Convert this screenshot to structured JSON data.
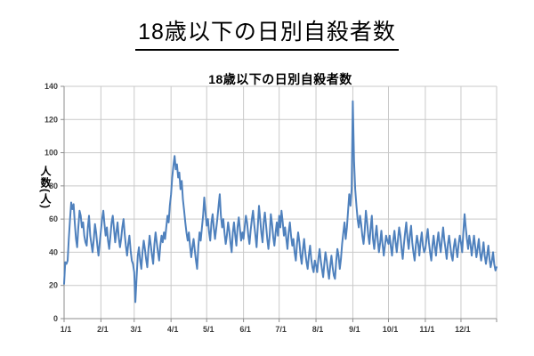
{
  "page": {
    "main_title": "18歳以下の日別自殺者数"
  },
  "chart_data": {
    "type": "line",
    "title": "18歳以下の日別自殺者数",
    "xlabel": "",
    "ylabel": "人数(人)",
    "ylim": [
      0,
      140
    ],
    "ytick_step": 20,
    "y_ticks": [
      0,
      20,
      40,
      60,
      80,
      100,
      120,
      140
    ],
    "grid": true,
    "legend": "none",
    "line_color": "#4F81BD",
    "grid_color": "#c9c9c9",
    "axis_color": "#8e8e8e",
    "days_total": 365,
    "x_ticks": [
      {
        "label": "1/1",
        "day": 0
      },
      {
        "label": "2/1",
        "day": 31
      },
      {
        "label": "3/1",
        "day": 59
      },
      {
        "label": "4/1",
        "day": 90
      },
      {
        "label": "5/1",
        "day": 120
      },
      {
        "label": "6/1",
        "day": 151
      },
      {
        "label": "7/1",
        "day": 181
      },
      {
        "label": "8/1",
        "day": 212
      },
      {
        "label": "9/1",
        "day": 243
      },
      {
        "label": "10/1",
        "day": 273
      },
      {
        "label": "11/1",
        "day": 304
      },
      {
        "label": "12/1",
        "day": 334
      }
    ],
    "values": [
      21,
      34,
      33,
      35,
      48,
      60,
      70,
      66,
      69,
      58,
      48,
      43,
      55,
      65,
      62,
      55,
      58,
      50,
      46,
      44,
      55,
      62,
      50,
      45,
      40,
      48,
      57,
      52,
      44,
      38,
      46,
      53,
      60,
      65,
      57,
      50,
      55,
      47,
      42,
      50,
      58,
      62,
      54,
      46,
      52,
      58,
      49,
      43,
      48,
      55,
      60,
      51,
      44,
      38,
      45,
      50,
      41,
      35,
      33,
      28,
      10,
      24,
      38,
      43,
      35,
      30,
      40,
      47,
      42,
      36,
      31,
      42,
      50,
      44,
      38,
      33,
      45,
      52,
      46,
      40,
      35,
      44,
      50,
      46,
      52,
      48,
      55,
      62,
      58,
      68,
      75,
      85,
      92,
      98,
      90,
      93,
      85,
      88,
      78,
      83,
      72,
      65,
      58,
      52,
      47,
      52,
      44,
      37,
      43,
      48,
      41,
      35,
      30,
      44,
      52,
      47,
      55,
      62,
      73,
      64,
      56,
      60,
      52,
      47,
      58,
      63,
      55,
      48,
      54,
      60,
      68,
      75,
      62,
      55,
      60,
      52,
      45,
      50,
      58,
      53,
      46,
      40,
      52,
      58,
      50,
      44,
      55,
      61,
      54,
      47,
      52,
      48,
      55,
      62,
      58,
      50,
      45,
      53,
      60,
      65,
      57,
      50,
      43,
      55,
      68,
      60,
      52,
      46,
      58,
      64,
      56,
      48,
      42,
      50,
      63,
      57,
      49,
      44,
      52,
      58,
      50,
      62,
      55,
      65,
      58,
      50,
      55,
      48,
      42,
      52,
      58,
      50,
      44,
      48,
      40,
      35,
      45,
      52,
      46,
      38,
      33,
      42,
      48,
      40,
      34,
      30,
      38,
      44,
      36,
      31,
      28,
      35,
      32,
      28,
      36,
      42,
      35,
      30,
      25,
      33,
      40,
      35,
      29,
      24,
      32,
      38,
      31,
      26,
      24,
      35,
      42,
      38,
      30,
      36,
      45,
      52,
      58,
      48,
      55,
      65,
      75,
      68,
      78,
      131,
      95,
      78,
      68,
      60,
      55,
      62,
      57,
      50,
      45,
      53,
      65,
      58,
      50,
      45,
      55,
      62,
      48,
      42,
      50,
      56,
      47,
      40,
      46,
      53,
      45,
      38,
      44,
      50,
      47,
      45,
      50,
      43,
      38,
      47,
      53,
      46,
      40,
      48,
      55,
      50,
      42,
      36,
      45,
      52,
      58,
      48,
      42,
      50,
      56,
      46,
      40,
      35,
      44,
      50,
      45,
      38,
      46,
      52,
      44,
      40,
      42,
      48,
      54,
      46,
      40,
      35,
      44,
      50,
      43,
      38,
      46,
      52,
      45,
      40,
      48,
      55,
      47,
      42,
      36,
      45,
      50,
      44,
      38,
      35,
      43,
      48,
      42,
      37,
      45,
      50,
      46,
      40,
      52,
      63,
      55,
      48,
      42,
      50,
      45,
      38,
      44,
      50,
      43,
      37,
      42,
      48,
      40,
      35,
      40,
      46,
      38,
      33,
      38,
      44,
      36,
      31,
      35,
      40,
      33,
      29,
      31
    ]
  }
}
